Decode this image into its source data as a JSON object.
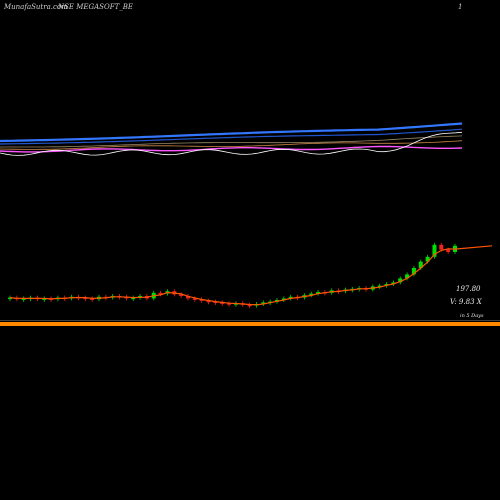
{
  "header": {
    "left_text": "MunafaSutra.com",
    "title": "NSE MEGASOFT_BE",
    "right_text": "1"
  },
  "labels": {
    "price": "197.80",
    "volume": "V: 9.83 X",
    "period": "in 5 Days"
  },
  "colors": {
    "background": "#000000",
    "up_candle": "#00dd00",
    "down_candle": "#ee2222",
    "price_line": "#ff5500",
    "volume_band": "#ff8800",
    "ema_short": "#ffffff",
    "ema_medium": "#ff55ff",
    "ema_long": "#3377ff"
  },
  "chart_data": {
    "type": "candlestick",
    "series": [
      {
        "name": "price",
        "values": [
          133,
          131,
          132,
          133,
          131,
          132,
          131,
          133,
          132,
          134,
          133,
          132,
          131,
          134,
          133,
          135,
          134,
          132,
          133,
          135,
          132,
          139,
          138,
          141,
          137,
          135,
          132,
          131,
          129,
          128,
          127,
          126,
          125,
          126,
          124,
          123,
          125,
          127,
          128,
          130,
          132,
          134,
          133,
          136,
          138,
          140,
          139,
          142,
          141,
          143,
          144,
          145,
          143,
          147,
          148,
          150,
          152,
          157,
          162,
          170,
          178,
          184,
          199,
          193,
          190,
          197.8
        ]
      }
    ]
  }
}
